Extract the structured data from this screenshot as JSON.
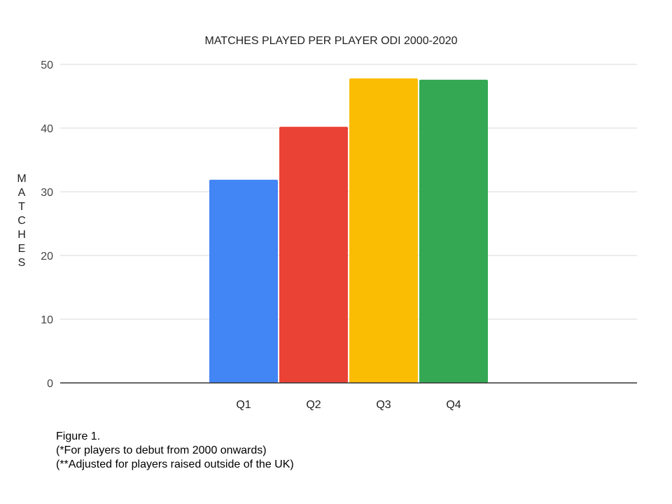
{
  "chart_data": {
    "type": "bar",
    "title": "MATCHES PLAYED PER PLAYER ODI 2000-2020",
    "xlabel": "",
    "ylabel": "MATCHES",
    "categories": [
      "Q1",
      "Q2",
      "Q3",
      "Q4"
    ],
    "values": [
      31.9,
      40.2,
      47.8,
      47.6
    ],
    "colors": [
      "#4285f4",
      "#ea4335",
      "#fbbc04",
      "#34a853"
    ],
    "ylim": [
      0,
      50
    ],
    "yticks": [
      0,
      10,
      20,
      30,
      40,
      50
    ],
    "grid": true,
    "legend": "none"
  },
  "caption": {
    "line1": "Figure 1.",
    "line2": "(*For players to debut from 2000 onwards)",
    "line3": "(**Adjusted for players raised outside of the UK)"
  }
}
